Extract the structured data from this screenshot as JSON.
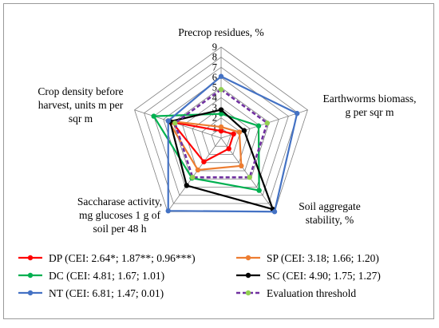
{
  "chart_data": {
    "type": "radar",
    "axes": [
      [
        "Precrop residues, %"
      ],
      [
        "Earthworms biomass,",
        "g per sqr m"
      ],
      [
        "Soil aggregate",
        "stability, %"
      ],
      [
        "Saccharase activity,",
        "mg glucoses 1 g of",
        "soil per 48 h"
      ],
      [
        "Crop density before",
        "harvest, units m per",
        "sqr m"
      ]
    ],
    "rlim": [
      0,
      9
    ],
    "ticks": [
      "1",
      "2",
      "3",
      "4",
      "5",
      "6",
      "7",
      "8",
      "9"
    ],
    "grid": true,
    "legend_position": "bottom",
    "series": [
      {
        "name": "DP (CEI: 2.64*; 1.87**; 0.96***)",
        "color": "#ff0000",
        "dash": false,
        "values": [
          0.7,
          1.3,
          1.3,
          2.9,
          5.1
        ]
      },
      {
        "name": "SP (CEI: 3.18; 1.66; 1.20)",
        "color": "#ed7d31",
        "dash": false,
        "values": [
          1.1,
          1.9,
          3.4,
          3.9,
          5.5
        ]
      },
      {
        "name": "DC (CEI: 4.81; 1.67; 1.01)",
        "color": "#00b050",
        "dash": false,
        "values": [
          2.4,
          3.9,
          6.4,
          4.9,
          7.0
        ]
      },
      {
        "name": "SC (CEI: 4.90; 1.75; 1.27)",
        "color": "#000000",
        "dash": false,
        "values": [
          2.8,
          2.4,
          8.7,
          5.8,
          5.3
        ]
      },
      {
        "name": "NT (CEI: 6.81; 1.47; 0.01)",
        "color": "#4472c4",
        "dash": false,
        "values": [
          6.1,
          7.9,
          9.0,
          8.9,
          5.5
        ]
      },
      {
        "name": "Evaluation threshold",
        "color": "#7030a0",
        "marker_color": "#92d050",
        "dash": true,
        "values": [
          4.8,
          4.8,
          4.8,
          4.8,
          4.8
        ]
      }
    ]
  }
}
